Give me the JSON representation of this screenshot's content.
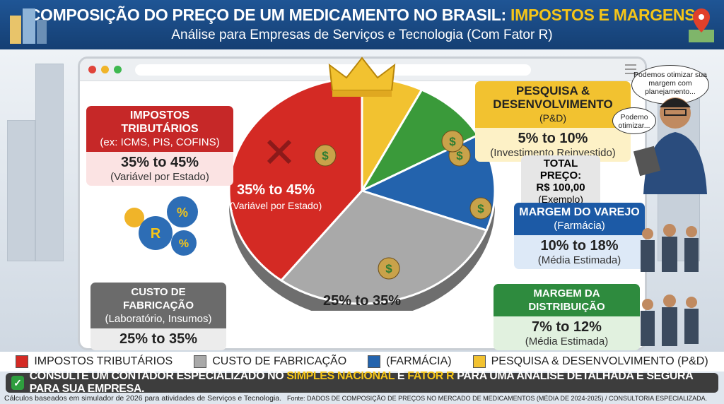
{
  "header": {
    "title_main": "COMPOSIÇÃO DO PREÇO DE UM MEDICAMENTO NO BRASIL: ",
    "title_highlight": "IMPOSTOS E MARGENS",
    "subtitle": "Análise para Empresas de Serviços e Tecnologia (Com Fator R)"
  },
  "boxes": {
    "impostos": {
      "title": "IMPOSTOS TRIBUTÁRIOS",
      "subtitle": "(ex: ICMS, PIS, COFINS)",
      "value": "35% to 45%",
      "note": "(Variável por Estado)",
      "color": "#c62828"
    },
    "pd": {
      "title": "PESQUISA & DESENVOLVIMENTO",
      "suffix": "(P&D)",
      "value": "5% to 10%",
      "note": "(Investimento Reinvestido)",
      "color": "#f2c230"
    },
    "total": {
      "title": "TOTAL PREÇO:",
      "value": "R$ 100,00",
      "note": "(Exemplo)"
    },
    "varejo": {
      "title": "MARGEM DO VAREJO",
      "subtitle": "(Farmácia)",
      "value": "10% to 18%",
      "note": "(Média Estimada)",
      "color": "#1c5aa6"
    },
    "distribuicao": {
      "title": "MARGEM DA DISTRIBUIÇÃO",
      "value": "7% to 12%",
      "note": "(Média Estimada)",
      "color": "#2e8b3e"
    },
    "custo": {
      "title": "CUSTO DE FABRICAÇÃO",
      "subtitle": "(Laboratório, Insumos)",
      "value": "25% to 35%",
      "color": "#6b6b6b"
    }
  },
  "pie_labels": {
    "impostos_value": "35% to 45%",
    "impostos_note": "(Variável por Estado)",
    "custo_value": "25% to 35%"
  },
  "bubbles": {
    "large": "Podemos otimizar sua margem com planejamento...",
    "small": "Podemo otimizar..."
  },
  "chart_data": {
    "type": "pie",
    "slices": [
      {
        "label": "Pesquisa & Desenvolvimento (P&D)",
        "range": [
          5,
          10
        ],
        "color": "#f2c230"
      },
      {
        "label": "Margem da Distribuição",
        "range": [
          7,
          12
        ],
        "color": "#3a9a3a"
      },
      {
        "label": "Margem do Varejo (Farmácia)",
        "range": [
          10,
          18
        ],
        "color": "#2363ad"
      },
      {
        "label": "Custo de Fabricação",
        "range": [
          25,
          35
        ],
        "color": "#a9a9a9"
      },
      {
        "label": "Impostos Tributários",
        "range": [
          35,
          45
        ],
        "color": "#d42a24"
      }
    ],
    "total": "R$ 100,00"
  },
  "legend": [
    {
      "label": "IMPOSTOS TRIBUTÁRIOS",
      "color": "#d42a24"
    },
    {
      "label": "CUSTO DE FABRICAÇÃO",
      "color": "#a9a9a9"
    },
    {
      "label": "(FARMÁCIA)",
      "color": "#2363ad"
    },
    {
      "label": "PESQUISA & DESENVOLVIMENTO (P&D)",
      "color": "#f2c230"
    }
  ],
  "banner": {
    "part1": "CONSULTE UM CONTADOR ESPECIALIZADO NO ",
    "hl1": "SIMPLES NACIONAL",
    "part2": " E ",
    "hl2": "FATOR R",
    "part3": " PARA UMA ANÁLISE DETALHADA E SEGURA PARA SUA EMPRESA."
  },
  "footer": {
    "note": "Cálculos baseados em simulador de 2026 para atividades de Serviços e Tecnologia.",
    "source": "Fonte: DADOS DE COMPOSIÇÃO DE PREÇOS NO MERCADO DE MEDICAMENTOS (MÉDIA DE 2024-2025) / CONSULTORIA ESPECIALIZADA."
  }
}
